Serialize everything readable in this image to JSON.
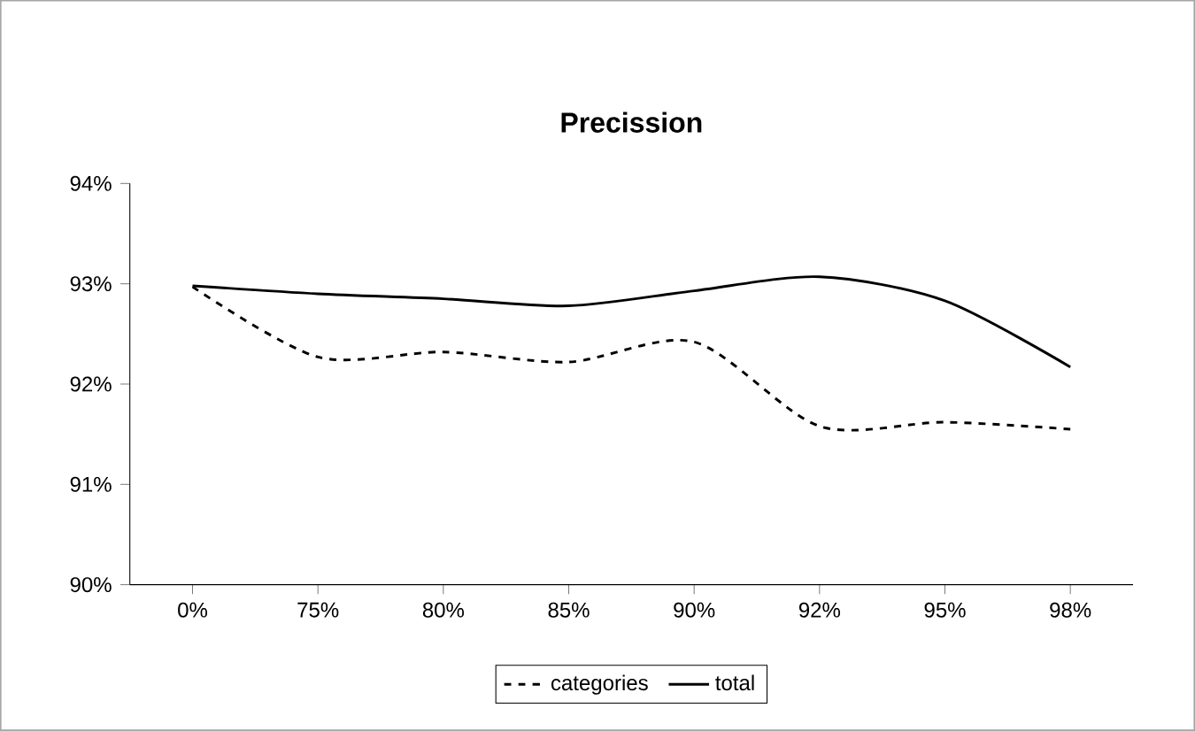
{
  "chart_data": {
    "type": "line",
    "title": "Precission",
    "categories": [
      "0%",
      "75%",
      "80%",
      "85%",
      "90%",
      "92%",
      "95%",
      "98%"
    ],
    "series": [
      {
        "name": "categories",
        "color": "#000000",
        "line_style": "dashed",
        "values": [
          92.97,
          92.27,
          92.32,
          92.22,
          92.42,
          91.58,
          91.62,
          91.55
        ]
      },
      {
        "name": "total",
        "color": "#000000",
        "line_style": "solid",
        "values": [
          92.98,
          92.9,
          92.85,
          92.78,
          92.93,
          93.07,
          92.83,
          92.17
        ]
      }
    ],
    "ylim": [
      90,
      94
    ],
    "yticks": [
      {
        "value": 90,
        "label": "90%"
      },
      {
        "value": 91,
        "label": "91%"
      },
      {
        "value": 92,
        "label": "92%"
      },
      {
        "value": 93,
        "label": "93%"
      },
      {
        "value": 94,
        "label": "94%"
      }
    ],
    "grid": false,
    "legend": "bottom",
    "marker": "none"
  }
}
